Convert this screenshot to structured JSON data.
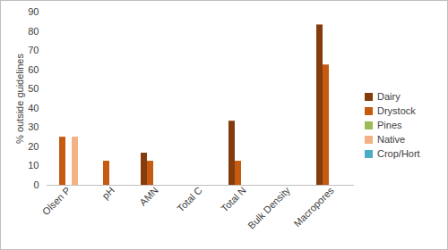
{
  "chart_data": {
    "type": "bar",
    "y_label": "% outside guidelines",
    "categories": [
      "Olsen P",
      "pH",
      "AMN",
      "Total C",
      "Total N",
      "Bulk Density",
      "Macropores"
    ],
    "series": [
      {
        "name": "Dairy",
        "color": "#843C0C",
        "values": [
          0,
          0,
          16.7,
          0,
          33.3,
          0,
          83.3
        ]
      },
      {
        "name": "Drystock",
        "color": "#C55A11",
        "values": [
          25,
          12.5,
          12.5,
          0,
          12.5,
          0,
          62.5
        ]
      },
      {
        "name": "Pines",
        "color": "#9BBB59",
        "values": [
          0,
          0,
          0,
          0,
          0,
          0,
          0
        ]
      },
      {
        "name": "Native",
        "color": "#F4B183",
        "values": [
          25,
          0,
          0,
          0,
          0,
          0,
          0
        ]
      },
      {
        "name": "Crop/Hort",
        "color": "#4BACC6",
        "values": [
          0,
          0,
          0,
          0,
          0,
          0,
          0
        ]
      }
    ],
    "ylim": [
      0,
      90
    ],
    "yticks": [
      0,
      10,
      20,
      30,
      40,
      50,
      60,
      70,
      80,
      90
    ],
    "grid": false,
    "legend": "right"
  }
}
